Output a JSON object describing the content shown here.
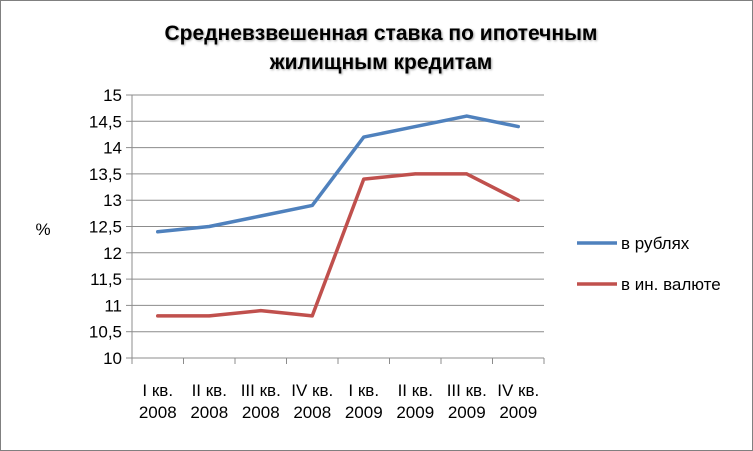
{
  "chart_data": {
    "type": "line",
    "title": [
      "Средневзвешенная ставка по ипотечным",
      "жилищным кредитам"
    ],
    "ylabel": "%",
    "ylim": [
      10,
      15
    ],
    "y_ticks": [
      "10",
      "10,5",
      "11",
      "11,5",
      "12",
      "12,5",
      "13",
      "13,5",
      "14",
      "14,5",
      "15"
    ],
    "categories": [
      [
        "I кв.",
        "2008"
      ],
      [
        "II кв.",
        "2008"
      ],
      [
        "III кв.",
        "2008"
      ],
      [
        "IV кв.",
        "2008"
      ],
      [
        "I кв.",
        "2009"
      ],
      [
        "II кв.",
        "2009"
      ],
      [
        "III кв.",
        "2009"
      ],
      [
        "IV кв.",
        "2009"
      ]
    ],
    "series": [
      {
        "name": "в рублях",
        "color": "#4f81bd",
        "values": [
          12.4,
          12.5,
          12.7,
          12.9,
          14.2,
          14.4,
          14.6,
          14.4
        ]
      },
      {
        "name": "в ин. валюте",
        "color": "#c0504d",
        "values": [
          10.8,
          10.8,
          10.9,
          10.8,
          13.4,
          13.5,
          13.5,
          13.0
        ]
      }
    ],
    "grid": true,
    "legend_position": "right"
  }
}
